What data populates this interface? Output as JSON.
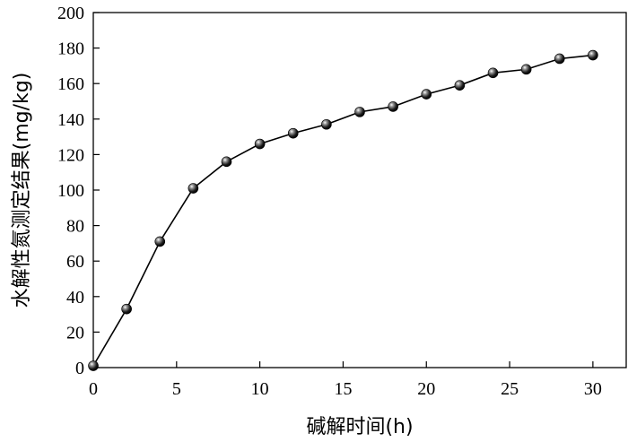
{
  "chart_data": {
    "type": "line",
    "title": "",
    "xlabel": "碱解时间(h)",
    "ylabel": "水解性氮测定结果(mg/kg)",
    "xlim": [
      0,
      32
    ],
    "ylim": [
      0,
      200
    ],
    "xticks": [
      0,
      5,
      10,
      15,
      20,
      25,
      30
    ],
    "yticks": [
      0,
      20,
      40,
      60,
      80,
      100,
      120,
      140,
      160,
      180,
      200
    ],
    "grid": false,
    "legend": "none",
    "series": [
      {
        "x": [
          0,
          2,
          4,
          6,
          8,
          10,
          12,
          14,
          16,
          18,
          20,
          22,
          24,
          26,
          28,
          30
        ],
        "y": [
          1,
          33,
          71,
          101,
          116,
          126,
          132,
          137,
          144,
          147,
          154,
          159,
          166,
          168,
          174,
          176
        ],
        "color": "#000000",
        "marker": "sphere"
      }
    ]
  }
}
